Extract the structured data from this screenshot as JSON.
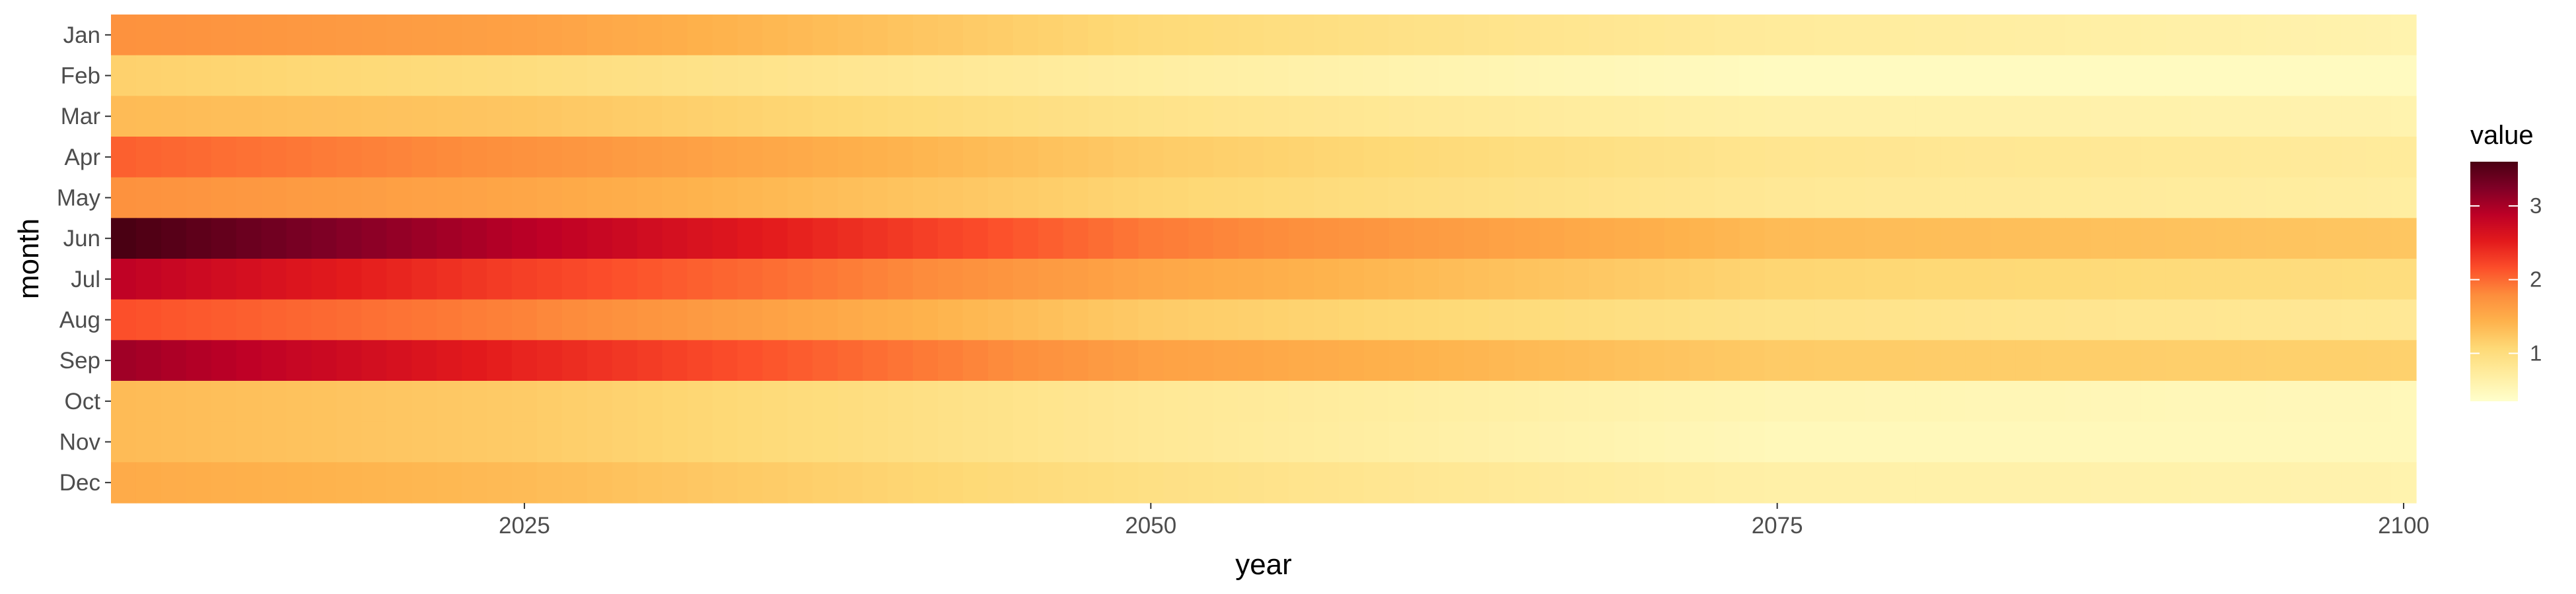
{
  "chart_data": {
    "type": "heatmap",
    "xlabel": "year",
    "ylabel": "month",
    "x_range": [
      2009,
      2100
    ],
    "x_ticks": [
      2025,
      2050,
      2075,
      2100
    ],
    "x_tick_labels": [
      "2025",
      "2050",
      "2075",
      "2100"
    ],
    "y_categories": [
      "Jan",
      "Feb",
      "Mar",
      "Apr",
      "May",
      "Jun",
      "Jul",
      "Aug",
      "Sep",
      "Oct",
      "Nov",
      "Dec"
    ],
    "grid": false,
    "legend": {
      "title": "value",
      "position": "right",
      "ticks": [
        1,
        2,
        3
      ],
      "tick_labels": [
        "1",
        "2",
        "3"
      ],
      "range": [
        0.35,
        3.6
      ]
    },
    "colormap": [
      "#ffffcc",
      "#ffeda0",
      "#fed976",
      "#feb24c",
      "#fd8d3c",
      "#fc4e2a",
      "#e31a1c",
      "#bd0026",
      "#800026",
      "#4a0013"
    ],
    "series": [
      {
        "name": "Jan",
        "values_at_years": {
          "2009": 1.75,
          "2025": 1.6,
          "2050": 1.05,
          "2075": 0.75,
          "2100": 0.6
        }
      },
      {
        "name": "Feb",
        "values_at_years": {
          "2009": 1.15,
          "2025": 1.0,
          "2050": 0.7,
          "2075": 0.45,
          "2100": 0.45
        }
      },
      {
        "name": "Mar",
        "values_at_years": {
          "2009": 1.35,
          "2025": 1.25,
          "2050": 0.9,
          "2075": 0.65,
          "2100": 0.6
        }
      },
      {
        "name": "Apr",
        "values_at_years": {
          "2009": 2.05,
          "2025": 1.75,
          "2050": 1.2,
          "2075": 0.85,
          "2100": 0.75
        }
      },
      {
        "name": "May",
        "values_at_years": {
          "2009": 1.75,
          "2025": 1.55,
          "2050": 1.1,
          "2075": 0.8,
          "2100": 0.7
        }
      },
      {
        "name": "Jun",
        "values_at_years": {
          "2009": 3.6,
          "2025": 2.9,
          "2050": 1.9,
          "2075": 1.35,
          "2100": 1.25
        }
      },
      {
        "name": "Jul",
        "values_at_years": {
          "2009": 2.85,
          "2025": 2.25,
          "2050": 1.55,
          "2075": 1.1,
          "2100": 1.0
        }
      },
      {
        "name": "Aug",
        "values_at_years": {
          "2009": 2.15,
          "2025": 1.85,
          "2050": 1.2,
          "2075": 0.9,
          "2100": 0.8
        }
      },
      {
        "name": "Sep",
        "values_at_years": {
          "2009": 3.05,
          "2025": 2.45,
          "2050": 1.6,
          "2075": 1.2,
          "2100": 1.15
        }
      },
      {
        "name": "Oct",
        "values_at_years": {
          "2009": 1.35,
          "2025": 1.2,
          "2050": 0.8,
          "2075": 0.55,
          "2100": 0.5
        }
      },
      {
        "name": "Nov",
        "values_at_years": {
          "2009": 1.35,
          "2025": 1.2,
          "2050": 0.8,
          "2075": 0.5,
          "2100": 0.5
        }
      },
      {
        "name": "Dec",
        "values_at_years": {
          "2009": 1.5,
          "2025": 1.35,
          "2050": 0.95,
          "2075": 0.65,
          "2100": 0.6
        }
      }
    ]
  }
}
